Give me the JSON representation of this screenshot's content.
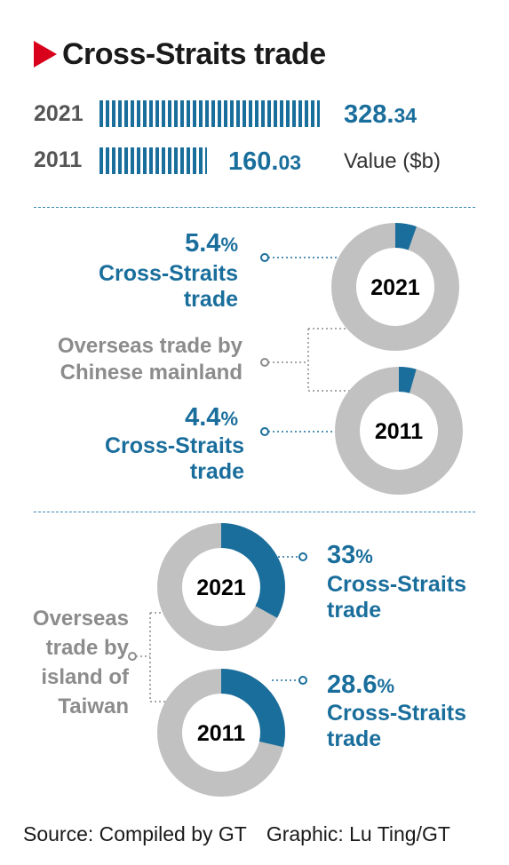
{
  "title": "Cross-Straits trade",
  "colors": {
    "accent": "#1a6e9c",
    "ring": "#c1c1c1",
    "title_mark": "#d9001b"
  },
  "chart_data": [
    {
      "type": "bar",
      "categories": [
        "2021",
        "2011"
      ],
      "values": [
        328.34,
        160.03
      ],
      "value_labels": [
        {
          "main": "328.",
          "decimal": "34"
        },
        {
          "main": "160.",
          "decimal": "03"
        }
      ],
      "unit_label": "Value ($b)"
    },
    {
      "type": "pie",
      "group_label": "Overseas trade by Chinese mainland",
      "slices": [
        {
          "year": "2021",
          "value": 5.4,
          "pct_text": "5.4",
          "label": "Cross-Straits trade"
        },
        {
          "year": "2011",
          "value": 4.4,
          "pct_text": "4.4",
          "label": "Cross-Straits trade"
        }
      ]
    },
    {
      "type": "pie",
      "group_label": "Overseas trade by island of Taiwan",
      "slices": [
        {
          "year": "2021",
          "value": 33,
          "pct_text": "33",
          "label": "Cross-Straits trade"
        },
        {
          "year": "2011",
          "value": 28.6,
          "pct_text": "28.6",
          "label": "Cross-Straits trade"
        }
      ]
    }
  ],
  "footer": {
    "source": "Source: Compiled by GT",
    "graphic": "Graphic: Lu Ting/GT"
  }
}
